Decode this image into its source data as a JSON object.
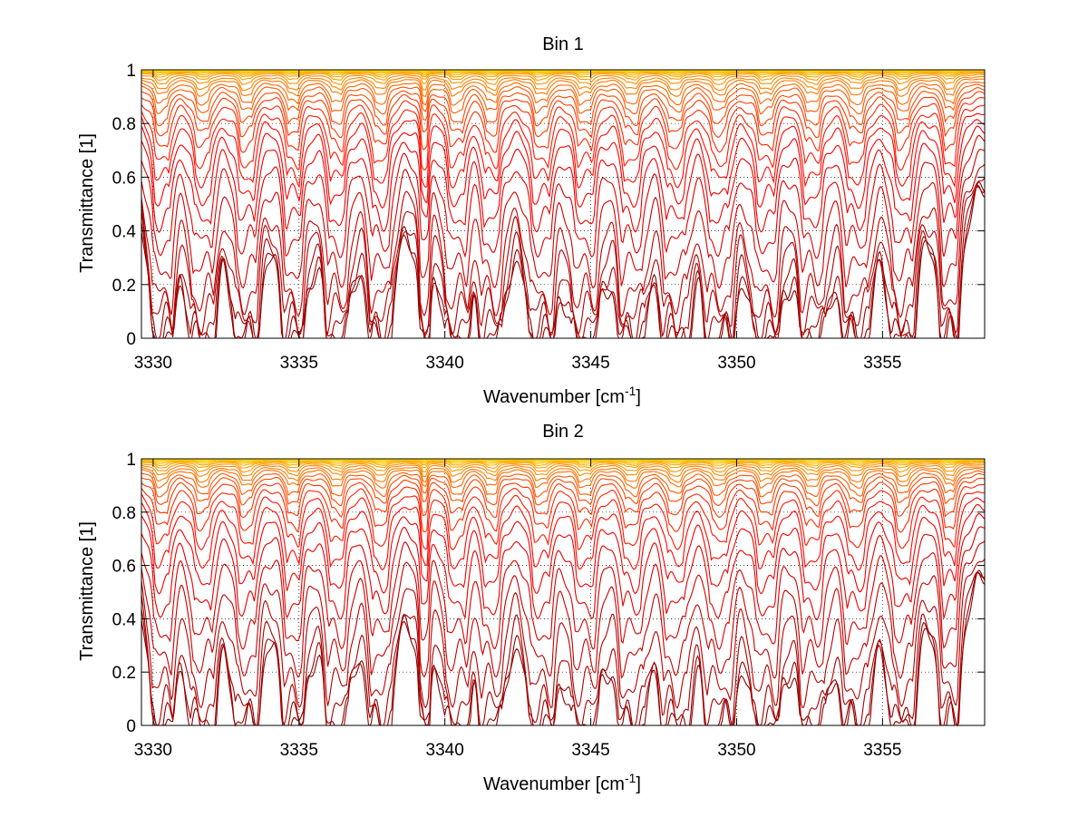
{
  "chart_data": [
    {
      "type": "line",
      "title": "Bin 1",
      "xlabel": "Wavenumber [cm",
      "xlabel_sup": "-1",
      "xlabel_end": "]",
      "ylabel": "Transmittance [1]",
      "xlim": [
        3329.6,
        3358.5
      ],
      "ylim": [
        0,
        1
      ],
      "xticks": [
        3330,
        3335,
        3340,
        3345,
        3350,
        3355
      ],
      "yticks": [
        0,
        0.2,
        0.4,
        0.6,
        0.8,
        1
      ],
      "ytick_labels": [
        "0",
        "0.2",
        "0.4",
        "0.6",
        "0.8",
        "1"
      ],
      "grid": "dotted",
      "colormap": "dark-red to yellow",
      "colors": [
        "#8b0000",
        "#ff0000",
        "#ff8000",
        "#ffe000"
      ],
      "line_minima": [
        0.0,
        0.003,
        0.04,
        0.1,
        0.16,
        0.26,
        0.36,
        0.45,
        0.53,
        0.6,
        0.66,
        0.72,
        0.77,
        0.81,
        0.85,
        0.88,
        0.91,
        0.93,
        0.95,
        0.965,
        0.975,
        0.982,
        0.988,
        0.992,
        0.995,
        0.997
      ],
      "absorption_lines": [
        {
          "x": 3330.3,
          "depth": 0.8
        },
        {
          "x": 3331.7,
          "depth": 0.85
        },
        {
          "x": 3333.2,
          "depth": 0.8
        },
        {
          "x": 3334.8,
          "depth": 0.7
        },
        {
          "x": 3336.3,
          "depth": 0.75
        },
        {
          "x": 3337.8,
          "depth": 0.8
        },
        {
          "x": 3339.3,
          "depth": 1.0
        },
        {
          "x": 3340.4,
          "depth": 0.85
        },
        {
          "x": 3341.6,
          "depth": 0.7
        },
        {
          "x": 3343.3,
          "depth": 0.9
        },
        {
          "x": 3344.8,
          "depth": 0.95
        },
        {
          "x": 3346.4,
          "depth": 0.9
        },
        {
          "x": 3347.9,
          "depth": 0.9
        },
        {
          "x": 3349.4,
          "depth": 0.95
        },
        {
          "x": 3351.0,
          "depth": 0.95
        },
        {
          "x": 3352.6,
          "depth": 0.9
        },
        {
          "x": 3354.1,
          "depth": 0.95
        },
        {
          "x": 3355.7,
          "depth": 0.8
        },
        {
          "x": 3357.3,
          "depth": 0.6
        }
      ]
    },
    {
      "type": "line",
      "title": "Bin 2",
      "xlabel": "Wavenumber [cm",
      "xlabel_sup": "-1",
      "xlabel_end": "]",
      "ylabel": "Transmittance [1]",
      "xlim": [
        3329.6,
        3358.5
      ],
      "ylim": [
        0,
        1
      ],
      "xticks": [
        3330,
        3335,
        3340,
        3345,
        3350,
        3355
      ],
      "yticks": [
        0,
        0.2,
        0.4,
        0.6,
        0.8,
        1
      ],
      "ytick_labels": [
        "0",
        "0.2",
        "0.4",
        "0.6",
        "0.8",
        "1"
      ],
      "grid": "dotted",
      "colormap": "dark-red to yellow",
      "colors": [
        "#8b0000",
        "#ff0000",
        "#ff8000",
        "#ffe000"
      ],
      "line_minima": [
        0.0,
        0.01,
        0.06,
        0.15,
        0.25,
        0.35,
        0.45,
        0.54,
        0.62,
        0.69,
        0.75,
        0.8,
        0.84,
        0.87,
        0.9,
        0.92,
        0.94,
        0.955,
        0.968,
        0.977,
        0.984,
        0.99,
        0.994,
        0.997
      ],
      "absorption_lines": [
        {
          "x": 3330.3,
          "depth": 0.8
        },
        {
          "x": 3331.7,
          "depth": 0.85
        },
        {
          "x": 3333.2,
          "depth": 0.8
        },
        {
          "x": 3334.8,
          "depth": 0.7
        },
        {
          "x": 3336.3,
          "depth": 0.75
        },
        {
          "x": 3337.8,
          "depth": 0.8
        },
        {
          "x": 3339.3,
          "depth": 1.0
        },
        {
          "x": 3340.4,
          "depth": 0.85
        },
        {
          "x": 3341.6,
          "depth": 0.7
        },
        {
          "x": 3343.3,
          "depth": 0.9
        },
        {
          "x": 3344.8,
          "depth": 0.95
        },
        {
          "x": 3346.4,
          "depth": 0.9
        },
        {
          "x": 3347.9,
          "depth": 0.9
        },
        {
          "x": 3349.4,
          "depth": 0.95
        },
        {
          "x": 3351.0,
          "depth": 0.95
        },
        {
          "x": 3352.6,
          "depth": 0.9
        },
        {
          "x": 3354.1,
          "depth": 0.95
        },
        {
          "x": 3355.7,
          "depth": 0.8
        },
        {
          "x": 3357.3,
          "depth": 0.6
        }
      ]
    }
  ]
}
